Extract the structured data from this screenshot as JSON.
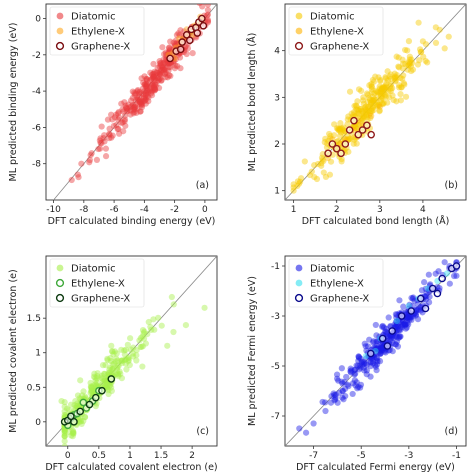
{
  "chart_data": [
    {
      "type": "scatter",
      "panel_label": "(a)",
      "xlabel": "DFT calculated binding energy (eV)",
      "ylabel": "ML predicted binding energy (eV)",
      "xlim": [
        -10.5,
        0.8
      ],
      "ylim": [
        -10.0,
        0.8
      ],
      "xticks": [
        -10,
        -8,
        -6,
        -4,
        -2,
        0
      ],
      "yticks": [
        -8,
        -6,
        -4,
        -2,
        0
      ],
      "legend_position": "top-left",
      "diagonal": true,
      "series": [
        {
          "name": "Diatomic",
          "style": "filled",
          "color": "#e8393c",
          "center_x": -3.4,
          "spread": 1.8,
          "noise": 0.45,
          "min": -8.5,
          "max": 0.2,
          "count": 320,
          "extra_points": [
            [
              -8.4,
              -8.6
            ],
            [
              -8.8,
              -8.9
            ],
            [
              -7.6,
              -7.8
            ],
            [
              -6.9,
              -6.6
            ]
          ]
        },
        {
          "name": "Ethylene-X",
          "style": "filled",
          "color": "#ffa81f",
          "points": [
            [
              -2.1,
              -1.9
            ],
            [
              -1.9,
              -1.6
            ],
            [
              -1.6,
              -1.4
            ],
            [
              -1.4,
              -1.1
            ],
            [
              -1.1,
              -0.9
            ],
            [
              -0.9,
              -0.7
            ],
            [
              -0.7,
              -0.4
            ],
            [
              -0.5,
              -0.3
            ],
            [
              -0.3,
              0.1
            ],
            [
              -2.4,
              -2.0
            ],
            [
              -1.2,
              -0.6
            ],
            [
              -0.8,
              -0.9
            ],
            [
              -0.2,
              -0.1
            ],
            [
              -1.7,
              -1.1
            ],
            [
              -2.0,
              -2.2
            ]
          ]
        },
        {
          "name": "Graphene-X",
          "style": "hollow",
          "color": "#7a0d10",
          "points": [
            [
              -2.3,
              -2.2
            ],
            [
              -1.9,
              -1.8
            ],
            [
              -1.5,
              -1.3
            ],
            [
              -1.2,
              -0.9
            ],
            [
              -0.9,
              -0.6
            ],
            [
              -0.6,
              -0.5
            ],
            [
              -0.4,
              -0.2
            ],
            [
              -0.2,
              0.0
            ],
            [
              -1.0,
              -1.2
            ],
            [
              -0.5,
              -0.8
            ],
            [
              -0.1,
              -0.4
            ],
            [
              -1.6,
              -1.7
            ]
          ]
        }
      ]
    },
    {
      "type": "scatter",
      "panel_label": "(b)",
      "xlabel": "DFT calculated bond length (Å)",
      "ylabel": "ML predicted bond length (Å)",
      "xlim": [
        0.8,
        5.0
      ],
      "ylim": [
        0.8,
        5.0
      ],
      "xticks": [
        1,
        2,
        3,
        4
      ],
      "yticks": [
        1,
        2,
        3,
        4
      ],
      "legend_position": "top-left",
      "diagonal": true,
      "series": [
        {
          "name": "Diatomic",
          "style": "filled",
          "color": "#f7c900",
          "center_x": 2.6,
          "spread": 0.65,
          "noise": 0.22,
          "min": 1.0,
          "max": 4.6,
          "count": 320,
          "extra_points": [
            [
              1.0,
              1.0
            ],
            [
              1.1,
              1.2
            ],
            [
              4.0,
              4.2
            ],
            [
              4.3,
              4.5
            ],
            [
              3.9,
              4.6
            ],
            [
              4.6,
              4.3
            ]
          ]
        },
        {
          "name": "Ethylene-X",
          "style": "filled",
          "color": "#ffb300",
          "points": [
            [
              1.8,
              1.7
            ],
            [
              2.0,
              1.9
            ],
            [
              2.2,
              2.1
            ],
            [
              2.4,
              2.3
            ],
            [
              2.6,
              2.4
            ],
            [
              2.8,
              2.6
            ],
            [
              3.0,
              2.8
            ],
            [
              2.1,
              2.0
            ],
            [
              2.5,
              2.5
            ],
            [
              1.9,
              2.1
            ]
          ]
        },
        {
          "name": "Graphene-X",
          "style": "hollow",
          "color": "#8e1a1a",
          "points": [
            [
              1.8,
              1.8
            ],
            [
              1.9,
              2.0
            ],
            [
              2.0,
              1.9
            ],
            [
              2.2,
              2.0
            ],
            [
              2.3,
              2.3
            ],
            [
              2.5,
              2.2
            ],
            [
              2.6,
              2.3
            ],
            [
              2.7,
              2.4
            ],
            [
              2.4,
              2.5
            ],
            [
              2.8,
              2.2
            ],
            [
              2.1,
              1.8
            ]
          ]
        }
      ]
    },
    {
      "type": "scatter",
      "panel_label": "(c)",
      "xlabel": "DFT calculated covalent electron (e)",
      "ylabel": "ML predicted covalent electron (e)",
      "xlim": [
        -0.35,
        2.4
      ],
      "ylim": [
        -0.35,
        2.4
      ],
      "xticks": [
        0.0,
        0.5,
        1.0,
        1.5,
        2.0
      ],
      "yticks": [
        0.0,
        0.5,
        1.0,
        1.5
      ],
      "legend_position": "top-left",
      "diagonal": true,
      "series": [
        {
          "name": "Diatomic",
          "style": "filled",
          "color": "#a6ef4a",
          "center_x": 0.45,
          "spread": 0.4,
          "noise": 0.12,
          "min": -0.05,
          "max": 1.8,
          "count": 300,
          "extra_points": [
            [
              2.2,
              1.65
            ],
            [
              1.6,
              1.1
            ],
            [
              1.2,
              0.8
            ],
            [
              1.7,
              1.3
            ],
            [
              1.9,
              1.4
            ],
            [
              -0.1,
              0.3
            ],
            [
              0.2,
              0.6
            ],
            [
              0.7,
              1.1
            ]
          ]
        },
        {
          "name": "Ethylene-X",
          "style": "hollow",
          "color": "#3fa83a",
          "points": [
            [
              0.0,
              -0.05
            ],
            [
              0.05,
              0.05
            ],
            [
              0.1,
              0.1
            ],
            [
              0.15,
              0.12
            ],
            [
              0.3,
              0.2
            ],
            [
              0.4,
              0.3
            ],
            [
              0.5,
              0.45
            ],
            [
              0.25,
              0.28
            ]
          ]
        },
        {
          "name": "Graphene-X",
          "style": "hollow",
          "color": "#0d3a10",
          "points": [
            [
              -0.05,
              0.0
            ],
            [
              0.0,
              0.02
            ],
            [
              0.05,
              0.08
            ],
            [
              0.1,
              0.0
            ],
            [
              0.2,
              0.15
            ],
            [
              0.35,
              0.25
            ],
            [
              0.45,
              0.35
            ],
            [
              0.55,
              0.45
            ],
            [
              0.7,
              0.62
            ]
          ]
        }
      ]
    },
    {
      "type": "scatter",
      "panel_label": "(d)",
      "xlabel": "DFT calculated Fermi energy (eV)",
      "ylabel": "ML predicted Fermi energy (eV)",
      "xlim": [
        -8.2,
        -0.6
      ],
      "ylim": [
        -8.2,
        -0.6
      ],
      "xticks": [
        -7,
        -5,
        -3,
        -1
      ],
      "yticks": [
        -7,
        -5,
        -3,
        -1
      ],
      "legend_position": "top-left",
      "diagonal": true,
      "series": [
        {
          "name": "Diatomic",
          "style": "filled",
          "color": "#1a1ae6",
          "center_x": -3.9,
          "spread": 1.25,
          "noise": 0.35,
          "min": -7.8,
          "max": -1.0,
          "count": 330,
          "extra_points": [
            [
              -7.6,
              -7.5
            ],
            [
              -7.0,
              -7.3
            ],
            [
              -6.5,
              -6.8
            ],
            [
              -1.3,
              -1.1
            ],
            [
              -1.1,
              -1.4
            ]
          ]
        },
        {
          "name": "Ethylene-X",
          "style": "filled",
          "color": "#33e0ef",
          "points": [
            [
              -4.8,
              -4.6
            ],
            [
              -4.2,
              -3.9
            ],
            [
              -3.5,
              -3.2
            ],
            [
              -2.6,
              -2.3
            ],
            [
              -1.8,
              -1.6
            ],
            [
              -1.4,
              -1.3
            ],
            [
              -3.0,
              -2.6
            ],
            [
              -4.4,
              -4.4
            ],
            [
              -2.2,
              -1.9
            ]
          ]
        },
        {
          "name": "Graphene-X",
          "style": "hollow",
          "color": "#0a0a8c",
          "points": [
            [
              -4.6,
              -4.5
            ],
            [
              -4.1,
              -3.9
            ],
            [
              -3.7,
              -3.6
            ],
            [
              -3.3,
              -3.0
            ],
            [
              -2.9,
              -2.8
            ],
            [
              -2.5,
              -2.3
            ],
            [
              -2.0,
              -1.9
            ],
            [
              -1.6,
              -1.5
            ],
            [
              -1.2,
              -1.1
            ],
            [
              -1.0,
              -1.0
            ],
            [
              -3.9,
              -4.2
            ],
            [
              -2.3,
              -2.7
            ],
            [
              -1.8,
              -2.1
            ]
          ]
        }
      ]
    }
  ]
}
